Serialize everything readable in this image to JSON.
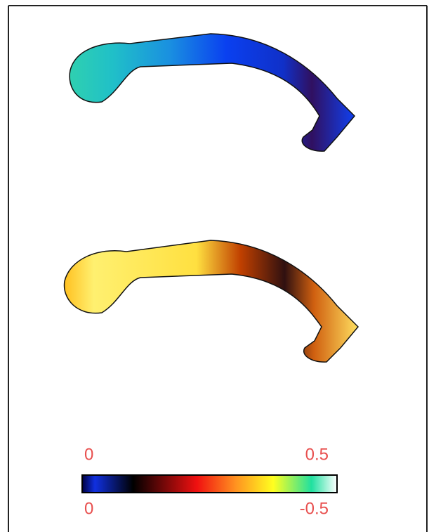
{
  "colorbar": {
    "top_labels": [
      "0",
      "0.5"
    ],
    "bottom_labels": [
      "0",
      "-0.5"
    ]
  }
}
